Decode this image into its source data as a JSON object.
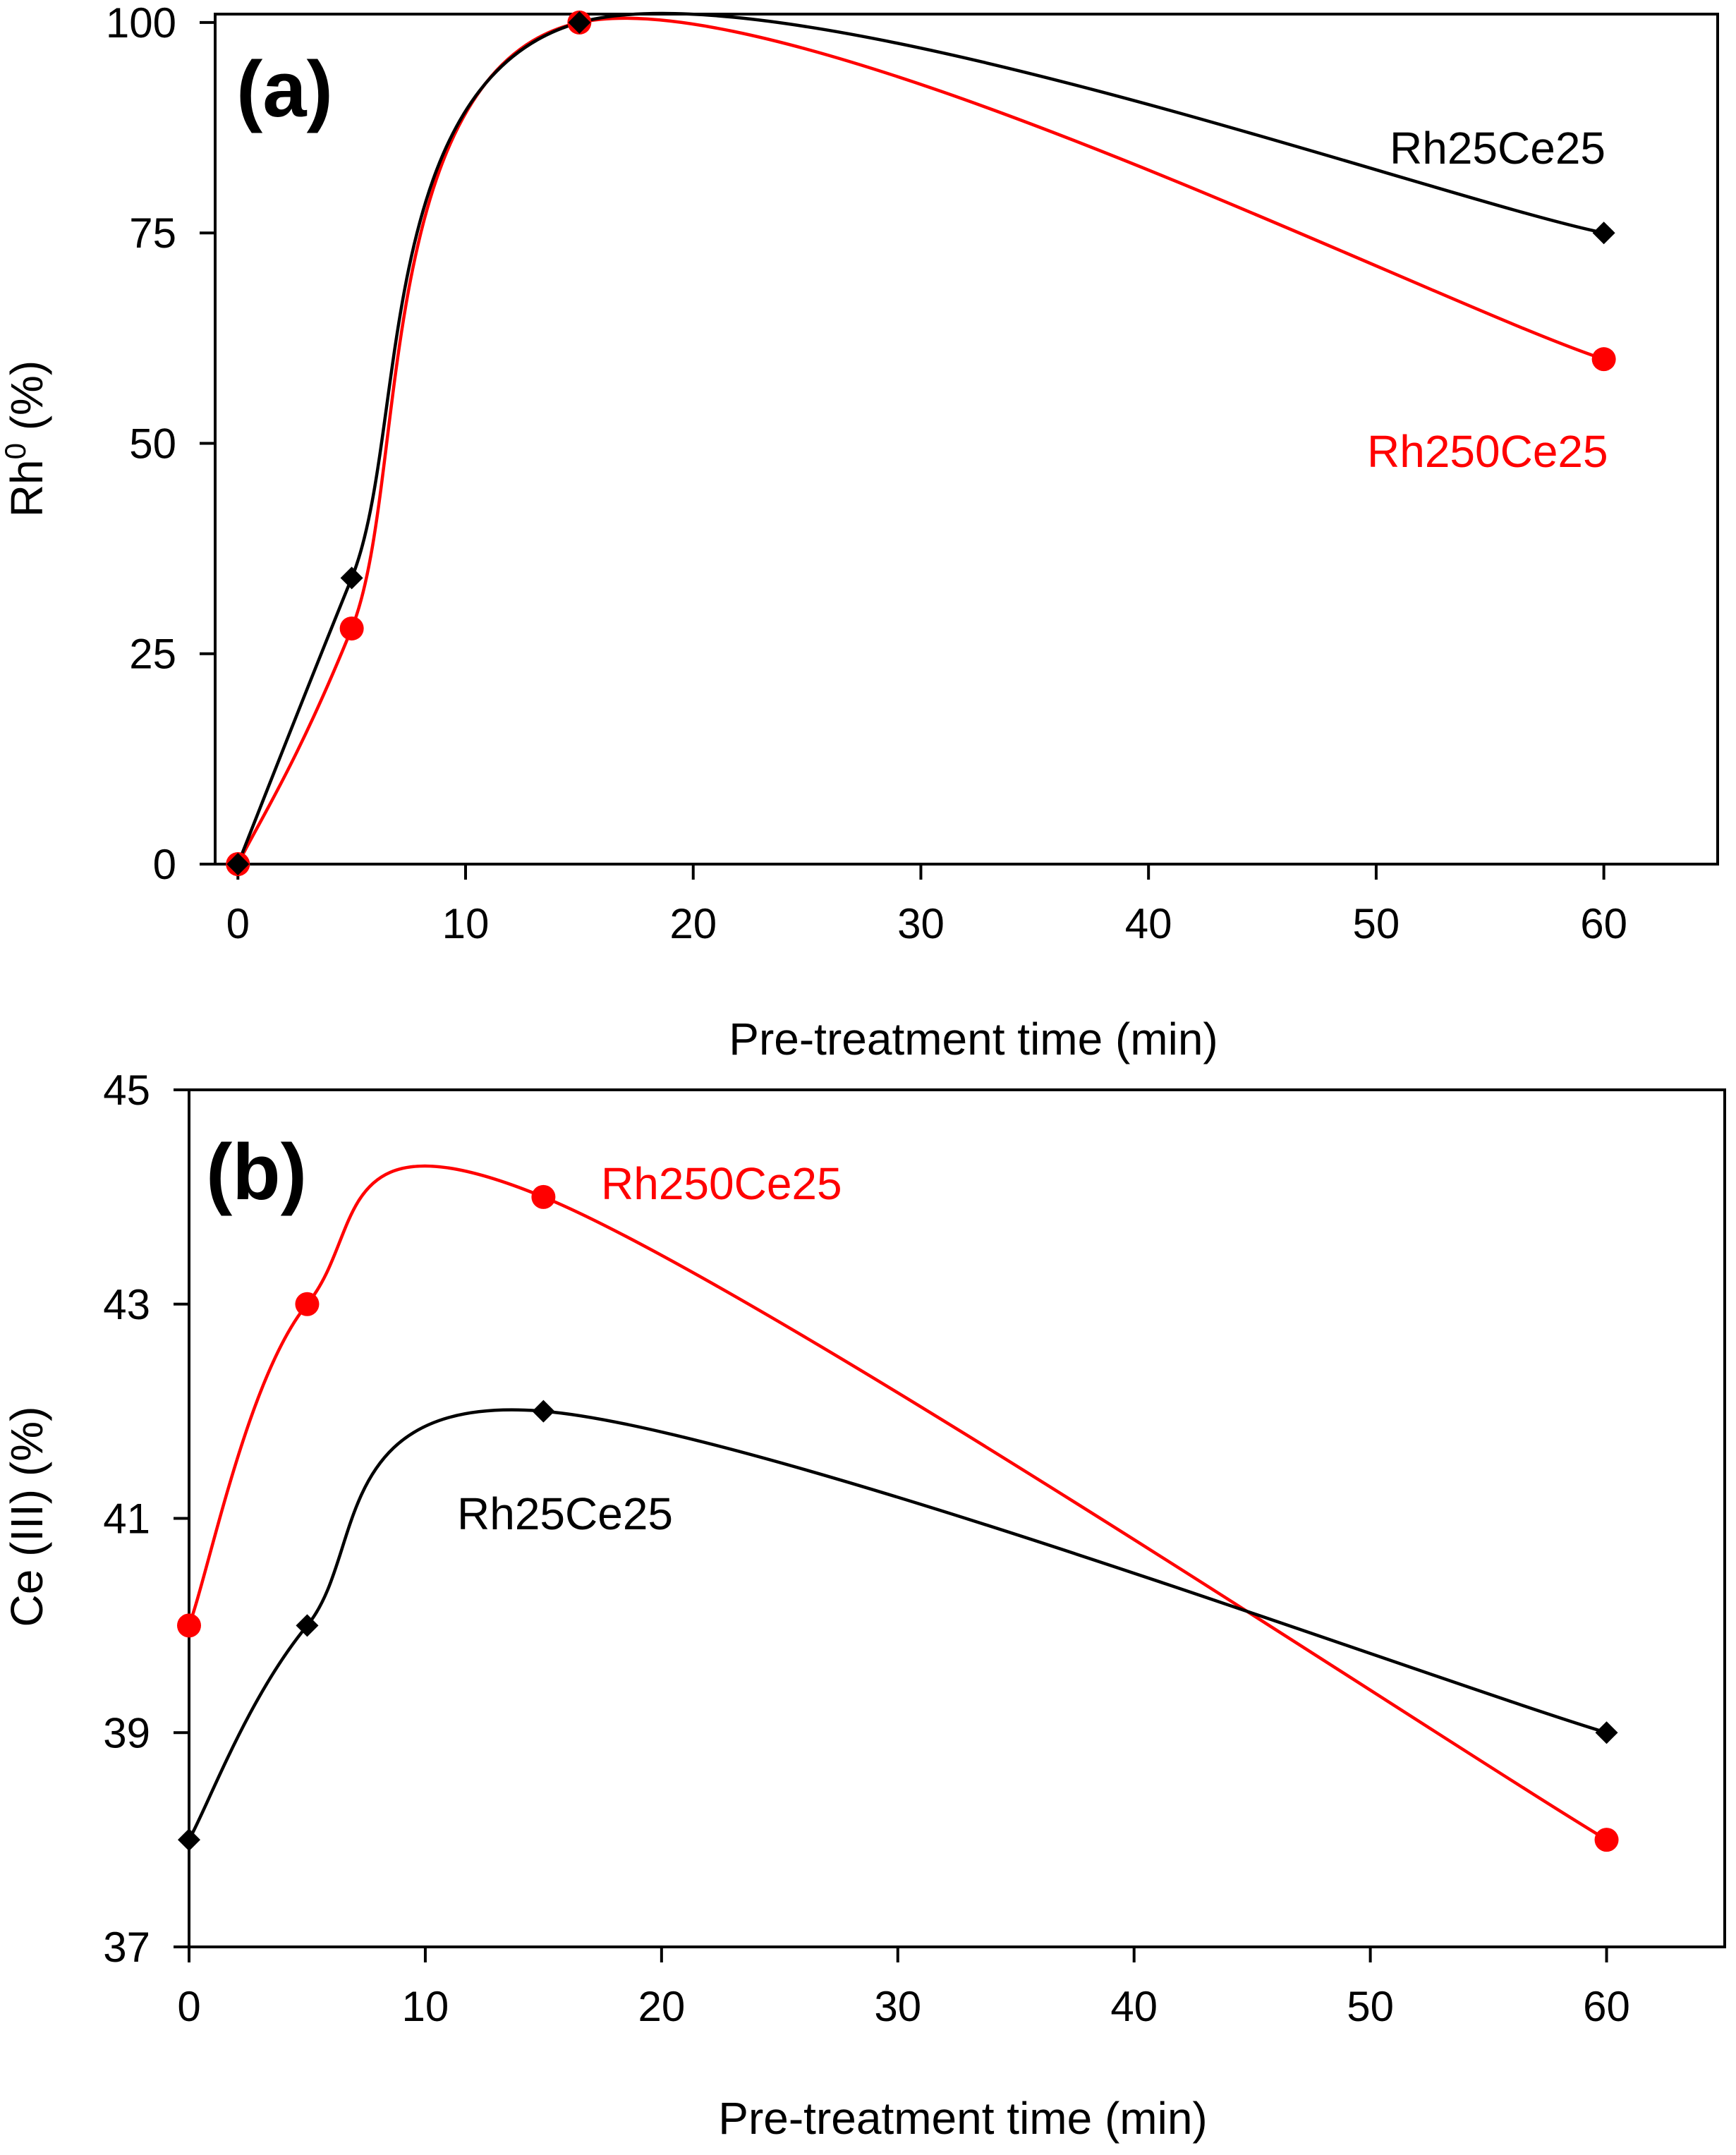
{
  "colors": {
    "series_black": "#000000",
    "series_red": "#ff0000",
    "background": "#ffffff"
  },
  "chart_data": [
    {
      "type": "line",
      "panel": "(a)",
      "xlabel": "Pre-treatment time (min)",
      "ylabel_main": "Rh",
      "ylabel_sup": "0",
      "ylabel_rest": " (%)",
      "xlim": [
        -1,
        65
      ],
      "ylim": [
        0,
        101
      ],
      "xticks": [
        "0",
        "10",
        "20",
        "30",
        "40",
        "50",
        "60"
      ],
      "xtick_values": [
        0,
        10,
        20,
        30,
        40,
        50,
        60
      ],
      "yticks": [
        "0",
        "25",
        "50",
        "75",
        "100"
      ],
      "ytick_values": [
        0,
        25,
        50,
        75,
        100
      ],
      "grid": false,
      "series": [
        {
          "name": "Rh25Ce25",
          "color": "#000000",
          "marker": "diamond",
          "x": [
            0,
            5,
            15,
            60
          ],
          "y": [
            0,
            34,
            100,
            75
          ]
        },
        {
          "name": "Rh250Ce25",
          "color": "#ff0000",
          "marker": "circle",
          "x": [
            0,
            5,
            15,
            60
          ],
          "y": [
            0,
            28,
            100,
            60
          ]
        }
      ]
    },
    {
      "type": "line",
      "panel": "(b)",
      "xlabel": "Pre-treatment time (min)",
      "ylabel": "Ce (III) (%)",
      "xlim": [
        0,
        65
      ],
      "ylim": [
        37,
        45
      ],
      "xticks": [
        "0",
        "10",
        "20",
        "30",
        "40",
        "50",
        "60"
      ],
      "xtick_values": [
        0,
        10,
        20,
        30,
        40,
        50,
        60
      ],
      "yticks": [
        "37",
        "39",
        "41",
        "43",
        "45"
      ],
      "ytick_values": [
        37,
        39,
        41,
        43,
        45
      ],
      "grid": false,
      "series": [
        {
          "name": "Rh25Ce25",
          "color": "#000000",
          "marker": "diamond",
          "x": [
            0,
            5,
            15,
            60
          ],
          "y": [
            38,
            40,
            42,
            39
          ]
        },
        {
          "name": "Rh250Ce25",
          "color": "#ff0000",
          "marker": "circle",
          "x": [
            0,
            5,
            15,
            60
          ],
          "y": [
            40,
            43,
            44,
            38
          ]
        }
      ]
    }
  ]
}
